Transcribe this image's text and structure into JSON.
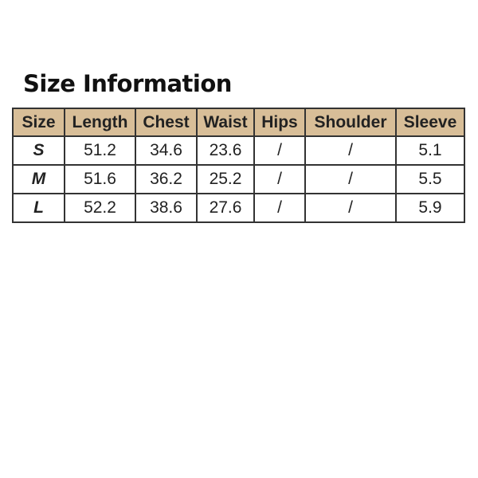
{
  "title": "Size Information",
  "colors": {
    "header_bg": "#D8BE98",
    "border": "#333333"
  },
  "table": {
    "headers": [
      "Size",
      "Length",
      "Chest",
      "Waist",
      "Hips",
      "Shoulder",
      "Sleeve"
    ],
    "rows": [
      [
        "S",
        "51.2",
        "34.6",
        "23.6",
        "/",
        "/",
        "5.1"
      ],
      [
        "M",
        "51.6",
        "36.2",
        "25.2",
        "/",
        "/",
        "5.5"
      ],
      [
        "L",
        "52.2",
        "38.6",
        "27.6",
        "/",
        "/",
        "5.9"
      ]
    ]
  }
}
